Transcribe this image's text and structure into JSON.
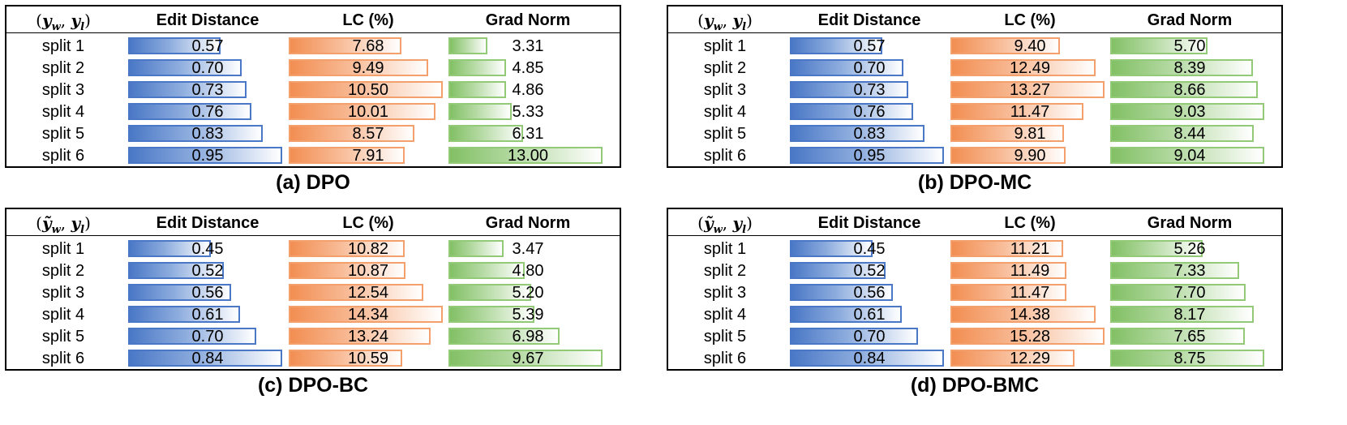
{
  "colors": {
    "edit_distance": "#4a78c6",
    "lc": "#f28e52",
    "grad_norm": "#82c065"
  },
  "chart_data": [
    {
      "type": "table",
      "caption": "(a) DPO",
      "pair_label": {
        "w": "y",
        "w_sub": "w",
        "l": "y",
        "l_sub": "l",
        "tilde": false
      },
      "columns": [
        "Edit Distance",
        "LC (%)",
        "Grad Norm"
      ],
      "rows": [
        "split 1",
        "split 2",
        "split 3",
        "split 4",
        "split 5",
        "split 6"
      ],
      "series": [
        {
          "name": "Edit Distance",
          "values": [
            0.57,
            0.7,
            0.73,
            0.76,
            0.83,
            0.95
          ],
          "labels": [
            "0.57",
            "0.70",
            "0.73",
            "0.76",
            "0.83",
            "0.95"
          ]
        },
        {
          "name": "LC (%)",
          "values": [
            7.68,
            9.49,
            10.5,
            10.01,
            8.57,
            7.91
          ],
          "labels": [
            "7.68",
            "9.49",
            "10.50",
            "10.01",
            "8.57",
            "7.91"
          ]
        },
        {
          "name": "Grad Norm",
          "values": [
            3.31,
            4.85,
            4.86,
            5.33,
            6.31,
            13.0
          ],
          "labels": [
            "3.31",
            "4.85",
            "4.86",
            "5.33",
            "6.31",
            "13.00"
          ]
        }
      ]
    },
    {
      "type": "table",
      "caption": "(b) DPO-MC",
      "pair_label": {
        "w": "y",
        "w_sub": "w",
        "l": "y",
        "l_sub": "l",
        "tilde": false
      },
      "columns": [
        "Edit Distance",
        "LC (%)",
        "Grad Norm"
      ],
      "rows": [
        "split 1",
        "split 2",
        "split 3",
        "split 4",
        "split 5",
        "split 6"
      ],
      "series": [
        {
          "name": "Edit Distance",
          "values": [
            0.57,
            0.7,
            0.73,
            0.76,
            0.83,
            0.95
          ],
          "labels": [
            "0.57",
            "0.70",
            "0.73",
            "0.76",
            "0.83",
            "0.95"
          ]
        },
        {
          "name": "LC (%)",
          "values": [
            9.4,
            12.49,
            13.27,
            11.47,
            9.81,
            9.9
          ],
          "labels": [
            "9.40",
            "12.49",
            "13.27",
            "11.47",
            "9.81",
            "9.90"
          ]
        },
        {
          "name": "Grad Norm",
          "values": [
            5.7,
            8.39,
            8.66,
            9.03,
            8.44,
            9.04
          ],
          "labels": [
            "5.70",
            "8.39",
            "8.66",
            "9.03",
            "8.44",
            "9.04"
          ]
        }
      ]
    },
    {
      "type": "table",
      "caption": "(c) DPO-BC",
      "pair_label": {
        "w": "y",
        "w_sub": "w",
        "l": "y",
        "l_sub": "l",
        "tilde": true
      },
      "columns": [
        "Edit Distance",
        "LC (%)",
        "Grad Norm"
      ],
      "rows": [
        "split 1",
        "split 2",
        "split 3",
        "split 4",
        "split 5",
        "split 6"
      ],
      "series": [
        {
          "name": "Edit Distance",
          "values": [
            0.45,
            0.52,
            0.56,
            0.61,
            0.7,
            0.84
          ],
          "labels": [
            "0.45",
            "0.52",
            "0.56",
            "0.61",
            "0.70",
            "0.84"
          ]
        },
        {
          "name": "LC (%)",
          "values": [
            10.82,
            10.87,
            12.54,
            14.34,
            13.24,
            10.59
          ],
          "labels": [
            "10.82",
            "10.87",
            "12.54",
            "14.34",
            "13.24",
            "10.59"
          ]
        },
        {
          "name": "Grad Norm",
          "values": [
            3.47,
            4.8,
            5.2,
            5.39,
            6.98,
            9.67
          ],
          "labels": [
            "3.47",
            "4.80",
            "5.20",
            "5.39",
            "6.98",
            "9.67"
          ]
        }
      ]
    },
    {
      "type": "table",
      "caption": "(d) DPO-BMC",
      "pair_label": {
        "w": "y",
        "w_sub": "w",
        "l": "y",
        "l_sub": "l",
        "tilde": true
      },
      "columns": [
        "Edit Distance",
        "LC (%)",
        "Grad Norm"
      ],
      "rows": [
        "split 1",
        "split 2",
        "split 3",
        "split 4",
        "split 5",
        "split 6"
      ],
      "series": [
        {
          "name": "Edit Distance",
          "values": [
            0.45,
            0.52,
            0.56,
            0.61,
            0.7,
            0.84
          ],
          "labels": [
            "0.45",
            "0.52",
            "0.56",
            "0.61",
            "0.70",
            "0.84"
          ]
        },
        {
          "name": "LC (%)",
          "values": [
            11.21,
            11.49,
            11.47,
            14.38,
            15.28,
            12.29
          ],
          "labels": [
            "11.21",
            "11.49",
            "11.47",
            "14.38",
            "15.28",
            "12.29"
          ]
        },
        {
          "name": "Grad Norm",
          "values": [
            5.26,
            7.33,
            7.7,
            8.17,
            7.65,
            8.75
          ],
          "labels": [
            "5.26",
            "7.33",
            "7.70",
            "8.17",
            "7.65",
            "8.75"
          ]
        }
      ]
    }
  ]
}
